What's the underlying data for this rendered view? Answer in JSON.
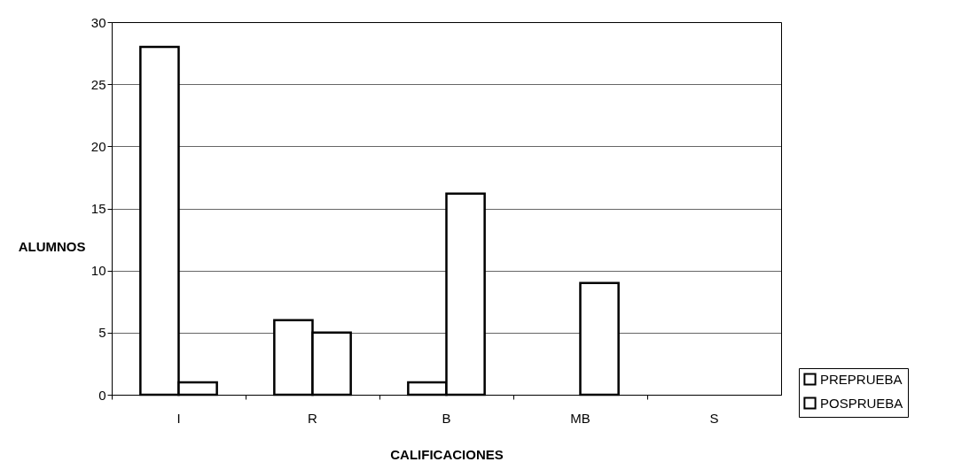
{
  "chart_data": {
    "type": "bar",
    "xlabel": "CALIFICACIONES",
    "ylabel": "ALUMNOS",
    "categories": [
      "I",
      "R",
      "B",
      "MB",
      "S"
    ],
    "series": [
      {
        "name": "PREPRUEBA",
        "color": "#ffffff",
        "values": [
          28,
          6,
          1,
          0,
          0
        ]
      },
      {
        "name": "POSPRUEBA",
        "color": "#ffffff",
        "values": [
          1,
          5,
          16.2,
          9,
          0
        ]
      }
    ],
    "ylim": [
      0,
      30
    ],
    "yticks": [
      0,
      5,
      10,
      15,
      20,
      25,
      30
    ],
    "grid": "y",
    "legend": "bottom right"
  }
}
